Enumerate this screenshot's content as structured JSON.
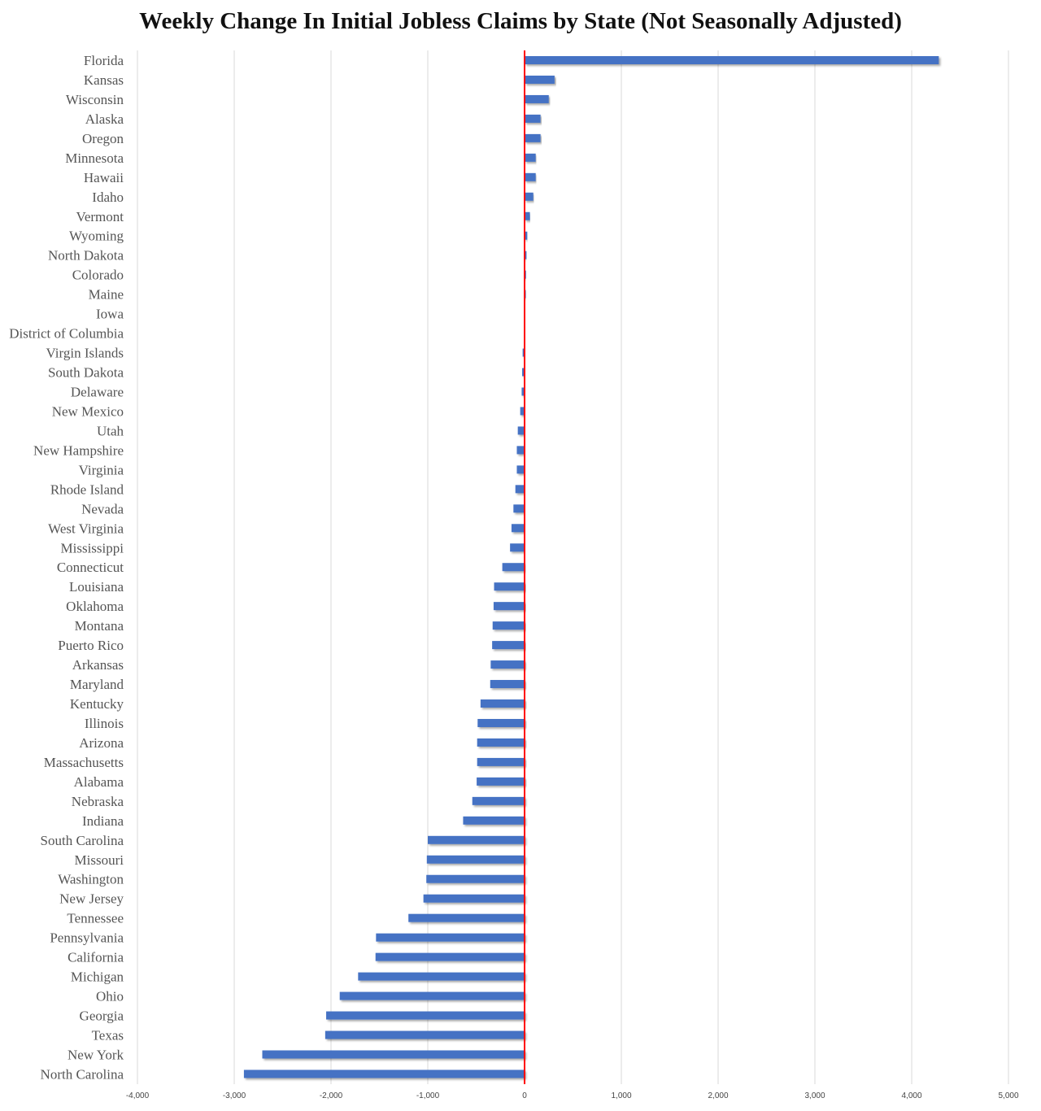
{
  "chart_data": {
    "type": "bar",
    "orientation": "horizontal",
    "title": "Weekly Change In Initial Jobless Claims by State (Not Seasonally Adjusted)",
    "xlabel": "",
    "ylabel": "",
    "xlim": [
      -4000,
      5000
    ],
    "x_ticks": [
      -4000,
      -3000,
      -2000,
      -1000,
      0,
      1000,
      2000,
      3000,
      4000,
      5000
    ],
    "x_tick_labels": [
      "-4,000",
      "-3,000",
      "-2,000",
      "-1,000",
      "0",
      "1,000",
      "2,000",
      "3,000",
      "4,000",
      "5,000"
    ],
    "grid": "vertical",
    "legend": "none",
    "colors": {
      "bar": "#4472C4",
      "zero_line": "#FF0000",
      "grid": "#D9D9D9"
    },
    "categories": [
      "Florida",
      "Kansas",
      "Wisconsin",
      "Alaska",
      "Oregon",
      "Minnesota",
      "Hawaii",
      "Idaho",
      "Vermont",
      "Wyoming",
      "North Dakota",
      "Colorado",
      "Maine",
      "Iowa",
      "District of Columbia",
      "Virgin Islands",
      "South Dakota",
      "Delaware",
      "New Mexico",
      "Utah",
      "New Hampshire",
      "Virginia",
      "Rhode Island",
      "Nevada",
      "West Virginia",
      "Mississippi",
      "Connecticut",
      "Louisiana",
      "Oklahoma",
      "Montana",
      "Puerto Rico",
      "Arkansas",
      "Maryland",
      "Kentucky",
      "Illinois",
      "Arizona",
      "Massachusetts",
      "Alabama",
      "Nebraska",
      "Indiana",
      "South Carolina",
      "Missouri",
      "Washington",
      "New Jersey",
      "Tennessee",
      "Pennsylvania",
      "California",
      "Michigan",
      "Ohio",
      "Georgia",
      "Texas",
      "New York",
      "North Carolina"
    ],
    "values": [
      4280,
      310,
      250,
      165,
      165,
      115,
      115,
      90,
      55,
      28,
      20,
      15,
      12,
      0,
      0,
      -20,
      -25,
      -30,
      -45,
      -70,
      -80,
      -80,
      -95,
      -115,
      -135,
      -150,
      -230,
      -315,
      -320,
      -330,
      -335,
      -350,
      -355,
      -455,
      -485,
      -490,
      -490,
      -495,
      -540,
      -635,
      -1000,
      -1010,
      -1015,
      -1045,
      -1200,
      -1535,
      -1540,
      -1720,
      -1910,
      -2050,
      -2060,
      -2710,
      -2900
    ]
  }
}
